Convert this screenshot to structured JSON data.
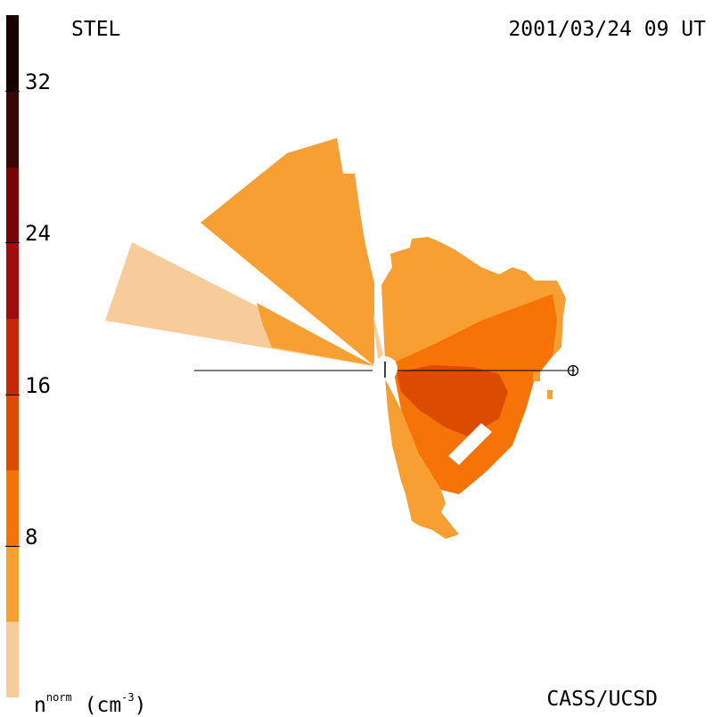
{
  "header": {
    "instrument": "STEL",
    "datetime": "2001/03/24 09 UT"
  },
  "footer": {
    "credit": "CASS/UCSD",
    "unit_base": "n",
    "unit_sup": "norm",
    "unit_rest": "(cm",
    "unit_exp": "-3",
    "unit_close": ")"
  },
  "colorbar": {
    "ticks": [
      "32",
      "24",
      "16",
      "8"
    ],
    "tick_values": [
      32,
      24,
      16,
      8
    ],
    "range": [
      0,
      36
    ],
    "colors": [
      "#f8cc9a",
      "#f79f33",
      "#f67407",
      "#db4b00",
      "#c42808",
      "#a10c0c",
      "#730606",
      "#3b0606",
      "#160203"
    ]
  },
  "chart_data": {
    "type": "polar-density-map",
    "observer_marker": "earth-symbol",
    "center_marker": "sun",
    "bins": [
      {
        "level": 1,
        "color": "#f8cc9a"
      },
      {
        "level": 2,
        "color": "#f79f33"
      },
      {
        "level": 3,
        "color": "#f67407"
      },
      {
        "level": 4,
        "color": "#db4b00"
      }
    ]
  }
}
